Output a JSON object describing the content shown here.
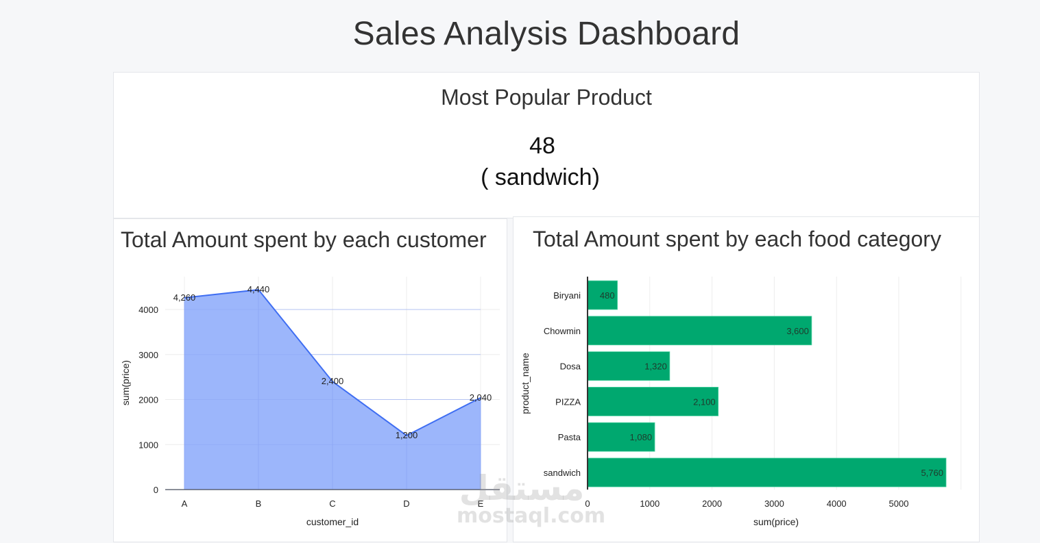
{
  "header": {
    "title": "Sales Analysis Dashboard"
  },
  "popular_card": {
    "title": "Most Popular Product",
    "value": "48",
    "product_label": "( sandwich)"
  },
  "customer_card": {
    "title": "Total Amount spent by each customer"
  },
  "category_card": {
    "title": "Total Amount spent by each food category"
  },
  "colors": {
    "area_fill": "#97b2fb",
    "area_line": "#3f6ef2",
    "bar_fill": "#00a86f",
    "grid": "#ececec",
    "axis": "#333333",
    "background": "#f6f7f9"
  },
  "watermark": {
    "arabic": "مستقل",
    "latin": "mostaql.com"
  },
  "chart_data": [
    {
      "type": "area",
      "title": "Total Amount spent by each customer",
      "xlabel": "customer_id",
      "ylabel": "sum(price)",
      "categories": [
        "A",
        "B",
        "C",
        "D",
        "E"
      ],
      "values": [
        4260,
        4440,
        2400,
        1200,
        2040
      ],
      "value_labels": [
        "4,260",
        "4,440",
        "2,400",
        "1,200",
        "2,040"
      ],
      "yticks": [
        0,
        1000,
        2000,
        3000,
        4000
      ],
      "ylim": [
        0,
        4730
      ],
      "grid": true,
      "legend": null
    },
    {
      "type": "bar",
      "orientation": "horizontal",
      "title": "Total Amount spent by each food category",
      "xlabel": "sum(price)",
      "ylabel": "product_name",
      "categories": [
        "Biryani",
        "Chowmin",
        "Dosa",
        "PIZZA",
        "Pasta",
        "sandwich"
      ],
      "values": [
        480,
        3600,
        1320,
        2100,
        1080,
        5760
      ],
      "value_labels": [
        "480",
        "3,600",
        "1,320",
        "2,100",
        "1,080",
        "5,760"
      ],
      "xticks": [
        0,
        1000,
        2000,
        3000,
        4000,
        5000
      ],
      "xlim": [
        0,
        6000
      ],
      "grid": true,
      "legend": null
    }
  ]
}
